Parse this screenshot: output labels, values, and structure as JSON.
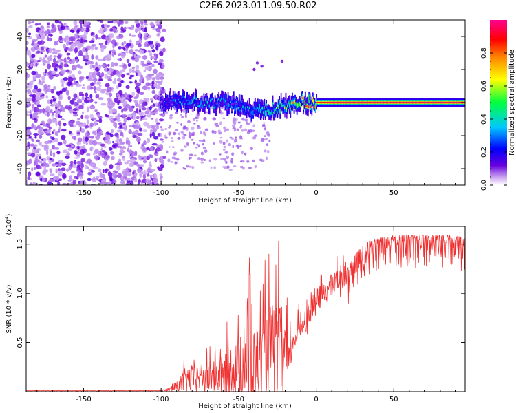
{
  "title": "C2E6.2023.011.09.50.R02",
  "colors": {
    "snr_line": "#f03030",
    "frame": "#000000"
  },
  "chart_data": [
    {
      "type": "heatmap",
      "name": "spectrogram",
      "xlabel": "Height of straight line (km)",
      "ylabel": "Frequency (Hz)",
      "xlim": [
        -187,
        96
      ],
      "ylim": [
        -50,
        50
      ],
      "xticks": [
        -150,
        -100,
        -50,
        0,
        50
      ],
      "xtick_labels": [
        "-150",
        "-100",
        "-50",
        "0",
        "50"
      ],
      "yticks": [
        -40,
        -20,
        0,
        20,
        40
      ],
      "ytick_labels": [
        "-40",
        "-20",
        "0",
        "20",
        "40"
      ],
      "noise_region_x": [
        -187,
        -98
      ],
      "noise_region_amplitude": "0.0-0.15 (scattered speckle)",
      "signal_band_center_hz": [
        {
          "x": -100,
          "y": 0
        },
        {
          "x": -90,
          "y": 1
        },
        {
          "x": -80,
          "y": 1
        },
        {
          "x": -70,
          "y": 0
        },
        {
          "x": -60,
          "y": 0
        },
        {
          "x": -50,
          "y": -2
        },
        {
          "x": -40,
          "y": -4
        },
        {
          "x": -30,
          "y": -4
        },
        {
          "x": -20,
          "y": -2
        },
        {
          "x": -10,
          "y": 0
        },
        {
          "x": 0,
          "y": 0
        },
        {
          "x": 20,
          "y": 0
        },
        {
          "x": 50,
          "y": 0
        },
        {
          "x": 96,
          "y": 0
        }
      ],
      "signal_band_peak_amplitude": [
        {
          "x": -100,
          "a": 0.2
        },
        {
          "x": -80,
          "a": 0.4
        },
        {
          "x": -50,
          "a": 0.35
        },
        {
          "x": -20,
          "a": 0.55
        },
        {
          "x": -5,
          "a": 0.8
        },
        {
          "x": 10,
          "a": 0.95
        },
        {
          "x": 96,
          "a": 0.95
        }
      ],
      "colorbar": {
        "label": "Normalized spectral amplitude",
        "range": [
          0,
          1
        ],
        "ticks": [
          0.0,
          0.2,
          0.4,
          0.6,
          0.8
        ],
        "tick_labels": [
          "0.0",
          "0.2",
          "0.4",
          "0.6",
          "0.8"
        ],
        "colormap": "rainbow (white-violet-blue-cyan-green-yellow-orange-red-magenta)"
      }
    },
    {
      "type": "line",
      "name": "snr",
      "xlabel": "Height of straight line (km)",
      "ylabel": "SNR (10 * v/v)",
      "y_multiplier_label": "(x10",
      "y_multiplier_exponent": "4",
      "y_multiplier_close": ")",
      "xlim": [
        -187,
        96
      ],
      "ylim": [
        0,
        1.68
      ],
      "yunits": "x10^4",
      "xticks": [
        -150,
        -100,
        -50,
        0,
        50
      ],
      "xtick_labels": [
        "-150",
        "-100",
        "-50",
        "0",
        "50"
      ],
      "yticks": [
        0.5,
        1.0,
        1.5
      ],
      "ytick_labels": [
        "0.5",
        "1.0",
        "1.5"
      ],
      "series": [
        {
          "name": "SNR",
          "x": [
            -187,
            -150,
            -100,
            -95,
            -90,
            -85,
            -80,
            -75,
            -70,
            -65,
            -60,
            -55,
            -50,
            -45,
            -43,
            -40,
            -35,
            -30,
            -25,
            -20,
            -18,
            -15,
            -10,
            -5,
            0,
            5,
            10,
            15,
            20,
            25,
            30,
            35,
            40,
            45,
            50,
            60,
            70,
            80,
            90,
            96
          ],
          "y": [
            0.01,
            0.01,
            0.01,
            0.02,
            0.04,
            0.1,
            0.12,
            0.15,
            0.12,
            0.15,
            0.14,
            0.2,
            0.22,
            0.3,
            0.45,
            0.25,
            0.3,
            0.4,
            0.35,
            0.3,
            0.25,
            0.5,
            0.65,
            0.78,
            0.9,
            1.0,
            1.05,
            1.15,
            1.2,
            1.35,
            1.45,
            1.5,
            1.52,
            1.53,
            1.55,
            1.55,
            1.55,
            1.55,
            1.55,
            1.52
          ],
          "noise_amplitude": [
            0.003,
            0.003,
            0.003,
            0.02,
            0.05,
            0.12,
            0.14,
            0.15,
            0.16,
            0.18,
            0.2,
            0.25,
            0.3,
            0.35,
            1.2,
            0.35,
            0.4,
            0.45,
            0.5,
            0.45,
            0.2,
            0.12,
            0.12,
            0.12,
            0.12,
            0.12,
            0.12,
            0.12,
            0.12,
            0.1,
            0.1,
            0.1,
            0.1,
            0.1,
            0.1,
            0.1,
            0.1,
            0.1,
            0.1,
            0.1
          ]
        }
      ]
    }
  ]
}
